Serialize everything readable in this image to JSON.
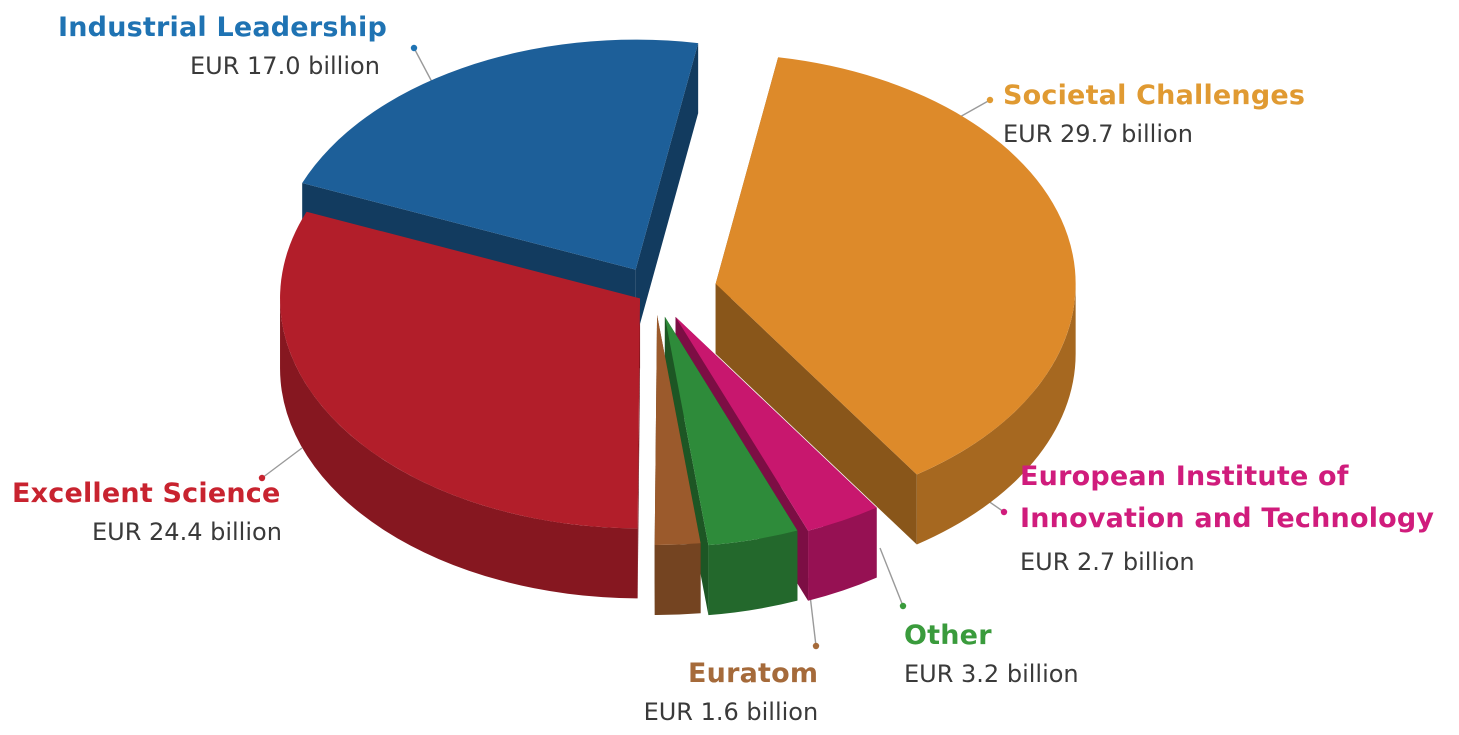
{
  "chart_data": {
    "type": "pie",
    "title": "",
    "unit": "EUR billion",
    "slices": [
      {
        "name": "Societal Challenges",
        "value": 29.7,
        "label": "EUR 29.7 billion",
        "color": "#dd8a2a"
      },
      {
        "name": "European Institute of Innovation and Technology",
        "name_lines": [
          "European Institute of",
          "Innovation and Technology"
        ],
        "value": 2.7,
        "label": "EUR 2.7 billion",
        "color": "#c8176e"
      },
      {
        "name": "Other",
        "value": 3.2,
        "label": "EUR 3.2 billion",
        "color": "#2e8b3a"
      },
      {
        "name": "Euratom",
        "value": 1.6,
        "label": "EUR 1.6 billion",
        "color": "#9b5a2c"
      },
      {
        "name": "Excellent Science",
        "value": 24.4,
        "label": "EUR 24.4 billion",
        "color": "#b21e2a"
      },
      {
        "name": "Industrial Leadership",
        "value": 17.0,
        "label": "EUR 17.0 billion",
        "color": "#1d5f99"
      }
    ],
    "label_colors": {
      "Societal Challenges": "#e09a32",
      "European Institute of Innovation and Technology": "#d01c7c",
      "Other": "#3a9b3c",
      "Euratom": "#a56a3a",
      "Excellent Science": "#c8232f",
      "Industrial Leadership": "#1f73b3"
    },
    "style": "3d-exploded"
  }
}
